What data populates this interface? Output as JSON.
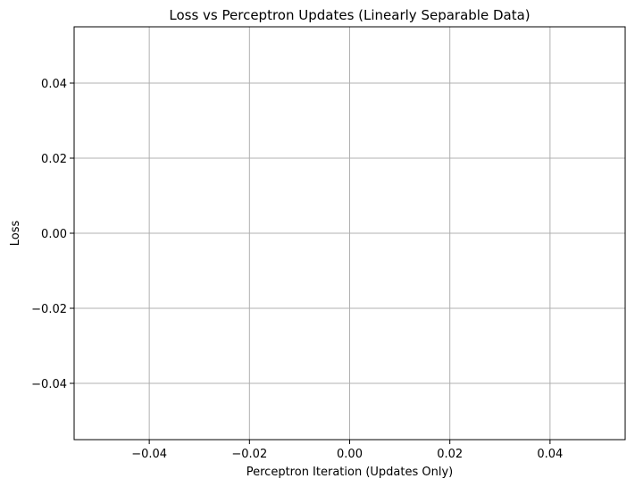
{
  "chart_data": {
    "type": "line",
    "title": "Loss vs Perceptron Updates (Linearly Separable Data)",
    "xlabel": "Perceptron Iteration (Updates Only)",
    "ylabel": "Loss",
    "xlim": [
      -0.055,
      0.055
    ],
    "ylim": [
      -0.055,
      0.055
    ],
    "xticks": [
      -0.04,
      -0.02,
      0.0,
      0.02,
      0.04
    ],
    "xtick_labels": [
      "−0.04",
      "−0.02",
      "0.00",
      "0.02",
      "0.04"
    ],
    "yticks": [
      -0.04,
      -0.02,
      0.0,
      0.02,
      0.04
    ],
    "ytick_labels": [
      "−0.04",
      "−0.02",
      "0.00",
      "0.02",
      "0.04"
    ],
    "grid": true,
    "series": [
      {
        "x": [],
        "y": []
      }
    ],
    "colors": {
      "grid": "#b0b0b0",
      "axes": "#000000",
      "background": "#ffffff"
    }
  }
}
